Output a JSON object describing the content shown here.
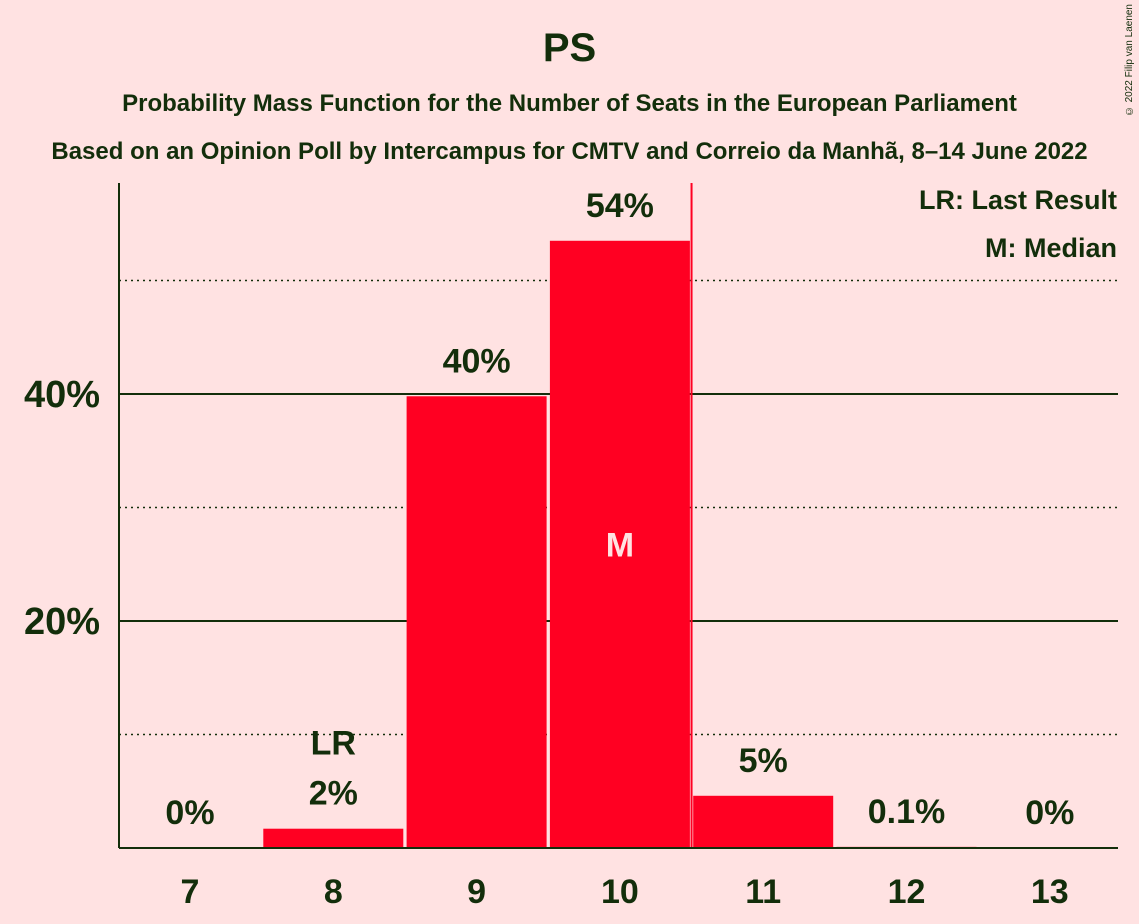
{
  "title": "PS",
  "subtitle1": "Probability Mass Function for the Number of Seats in the European Parliament",
  "subtitle2": "Based on an Opinion Poll by Intercampus for CMTV and Correio da Manhã, 8–14 June 2022",
  "copyright": "© 2022 Filip van Laenen",
  "legend": {
    "last_result": "LR: Last Result",
    "median": "M: Median"
  },
  "colors": {
    "bar": "#FF0022",
    "background": "#FFE2E2",
    "text": "#132E0B"
  },
  "chart_data": {
    "type": "bar",
    "categories": [
      "7",
      "8",
      "9",
      "10",
      "11",
      "12",
      "13"
    ],
    "values": [
      0,
      1.7,
      39.8,
      53.5,
      4.6,
      0.1,
      0
    ],
    "labels": [
      "0%",
      "2%",
      "40%",
      "54%",
      "5%",
      "0.1%",
      "0%"
    ],
    "ylim": [
      0,
      58
    ],
    "yticks": [
      {
        "value": 20,
        "label": "20%"
      },
      {
        "value": 40,
        "label": "40%"
      }
    ],
    "minor_gridlines": [
      10,
      30,
      50
    ],
    "last_result": {
      "category": "8",
      "label": "LR"
    },
    "median": {
      "category": "10",
      "label": "M"
    },
    "median_line_between": [
      "10",
      "11"
    ],
    "legend_position": "top-right"
  }
}
